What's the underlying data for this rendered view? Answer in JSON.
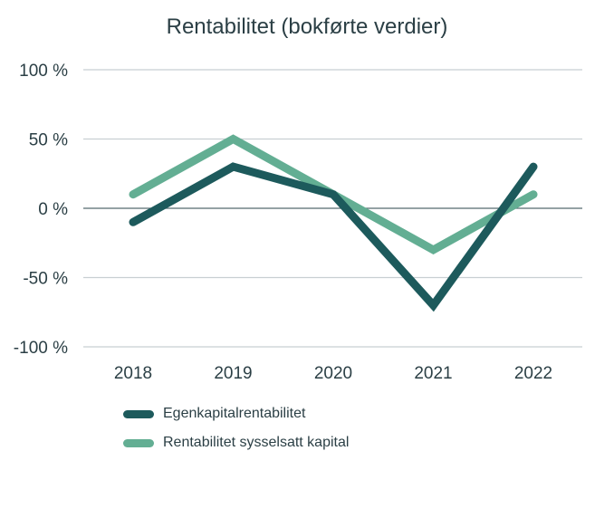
{
  "chart_data": {
    "type": "line",
    "title": "Rentabilitet (bokførte verdier)",
    "categories": [
      "2018",
      "2019",
      "2020",
      "2021",
      "2022"
    ],
    "y_ticks": [
      {
        "value": 100,
        "label": "100 %"
      },
      {
        "value": 50,
        "label": "50 %"
      },
      {
        "value": 0,
        "label": "0 %"
      },
      {
        "value": -50,
        "label": "-50 %"
      },
      {
        "value": -100,
        "label": "-100 %"
      }
    ],
    "ylim": [
      -100,
      100
    ],
    "grid": true,
    "legend_position": "bottom-left",
    "series": [
      {
        "name": "Egenkapitalrentabilitet",
        "color": "#1d5a5c",
        "values": [
          -10,
          30,
          10,
          -70,
          30
        ]
      },
      {
        "name": "Rentabilitet sysselsatt kapital",
        "color": "#63ae93",
        "values": [
          10,
          50,
          10,
          -30,
          10
        ]
      }
    ]
  }
}
